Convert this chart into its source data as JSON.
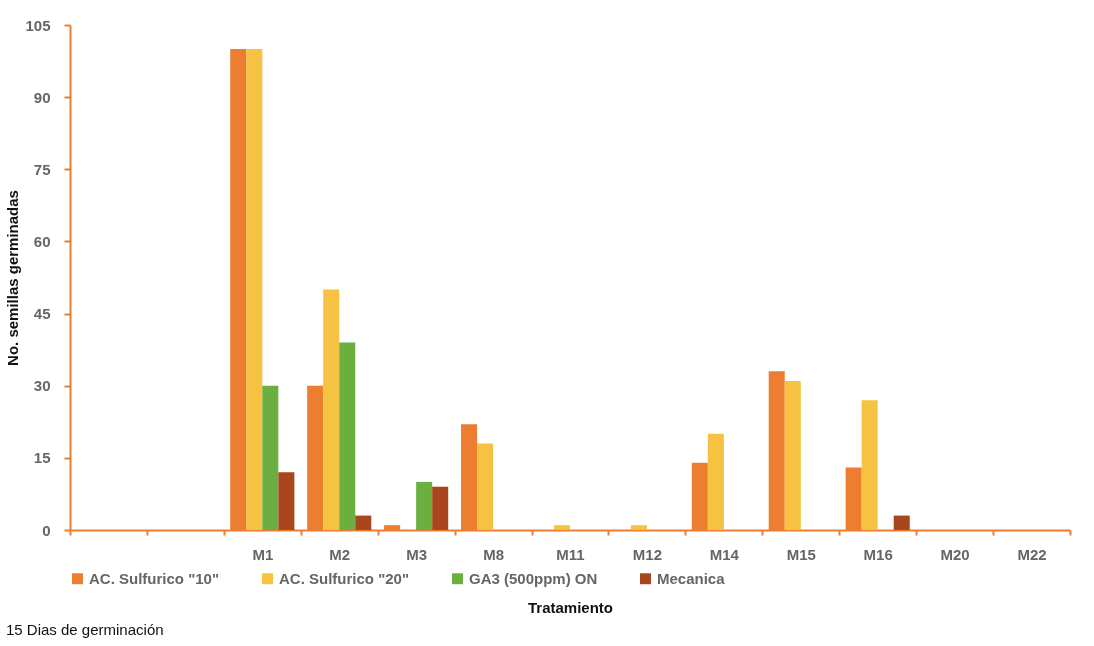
{
  "chart_data": {
    "type": "bar",
    "xlabel": "Tratamiento",
    "ylabel": "No. semillas germinadas",
    "categories": [
      null,
      null,
      "M1",
      "M2",
      "M3",
      "M8",
      "M11",
      "M12",
      "M14",
      "M15",
      "M16",
      "M20",
      "M22"
    ],
    "series": [
      {
        "name": "AC. Sulfurico \"10\"",
        "color": "#ed7d31",
        "values": [
          null,
          null,
          100,
          30,
          1,
          22,
          0,
          0,
          14,
          33,
          13,
          0,
          0
        ]
      },
      {
        "name": "AC. Sulfurico \"20\"",
        "color": "#f5c242",
        "values": [
          null,
          null,
          100,
          50,
          0,
          18,
          1,
          1,
          20,
          31,
          27,
          0,
          0
        ]
      },
      {
        "name": "GA3 (500ppm) ON",
        "color": "#6aaf3f",
        "values": [
          null,
          null,
          30,
          39,
          10,
          0,
          0,
          0,
          0,
          0,
          0,
          0,
          0
        ]
      },
      {
        "name": "Mecanica",
        "color": "#a9461d",
        "values": [
          null,
          null,
          12,
          3,
          9,
          0,
          0,
          0,
          0,
          0,
          3,
          0,
          0
        ]
      }
    ],
    "ylim": [
      0,
      105
    ],
    "yticks": [
      0,
      15,
      30,
      45,
      60,
      75,
      90,
      105
    ],
    "grid": false,
    "legend": "bottom",
    "annotations": [
      "15 Dias de germinación"
    ]
  }
}
